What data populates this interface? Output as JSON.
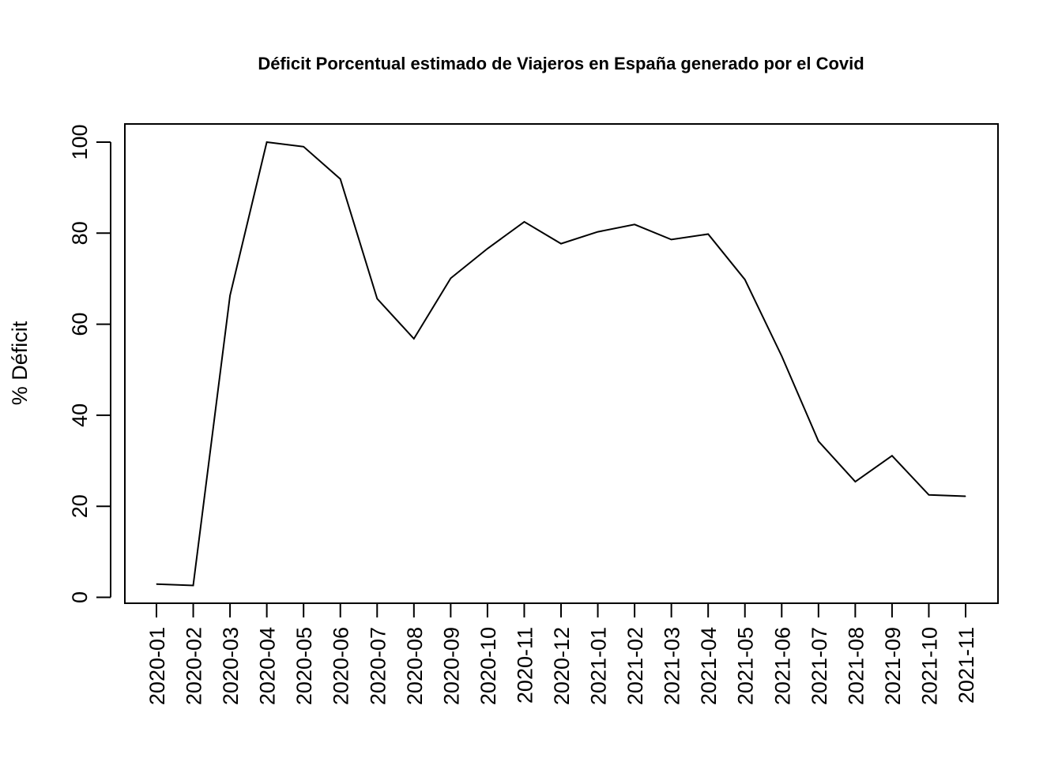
{
  "chart_data": {
    "type": "line",
    "title": "Déficit Porcentual estimado de Viajeros en España generado por el Covid",
    "xlabel": "",
    "ylabel": "% Déficit",
    "categories": [
      "2020-01",
      "2020-02",
      "2020-03",
      "2020-04",
      "2020-05",
      "2020-06",
      "2020-07",
      "2020-08",
      "2020-09",
      "2020-10",
      "2020-11",
      "2020-12",
      "2021-01",
      "2021-02",
      "2021-03",
      "2021-04",
      "2021-05",
      "2021-06",
      "2021-07",
      "2021-08",
      "2021-09",
      "2021-10",
      "2021-11"
    ],
    "series": [
      {
        "values": [
          2.9,
          2.6,
          66.3,
          100.0,
          99.0,
          91.9,
          65.6,
          56.8,
          70.1,
          76.6,
          82.5,
          77.7,
          80.3,
          81.9,
          78.6,
          79.8,
          69.8,
          53.0,
          34.3,
          25.4,
          31.1,
          22.5,
          22.2
        ]
      }
    ],
    "ylim": [
      0,
      100
    ],
    "yticks": [
      0,
      20,
      40,
      60,
      80,
      100
    ],
    "grid": false,
    "legend": "none",
    "colors": {
      "line": "#000000",
      "axis": "#000000",
      "background": "#ffffff"
    }
  }
}
